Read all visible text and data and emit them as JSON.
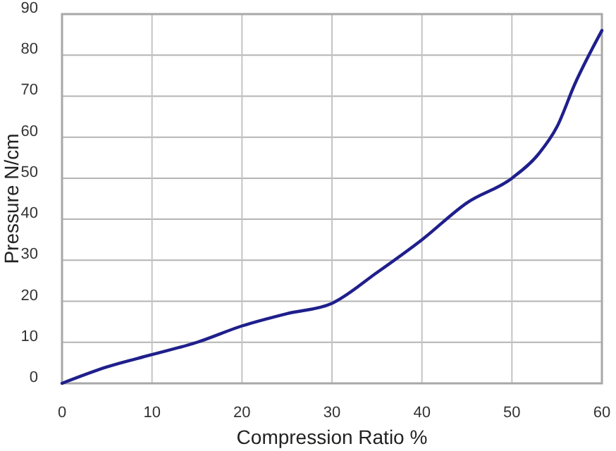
{
  "chart_data": {
    "type": "line",
    "xlabel": "Compression Ratio %",
    "ylabel": "Pressure N/cm",
    "xlim": [
      0,
      60
    ],
    "ylim": [
      0,
      90
    ],
    "xticks": [
      0,
      10,
      20,
      30,
      40,
      50,
      60
    ],
    "yticks": [
      0,
      10,
      20,
      30,
      40,
      50,
      60,
      70,
      80,
      90
    ],
    "grid": true,
    "x": [
      0,
      5,
      10,
      15,
      20,
      25,
      30,
      35,
      40,
      45,
      50,
      53,
      55,
      57,
      60
    ],
    "series": [
      {
        "color": "#1f1f8c",
        "values": [
          0,
          4,
          7,
          10,
          14,
          17,
          19.5,
          27,
          35,
          44,
          50,
          56,
          62.5,
          73,
          86
        ]
      }
    ]
  }
}
